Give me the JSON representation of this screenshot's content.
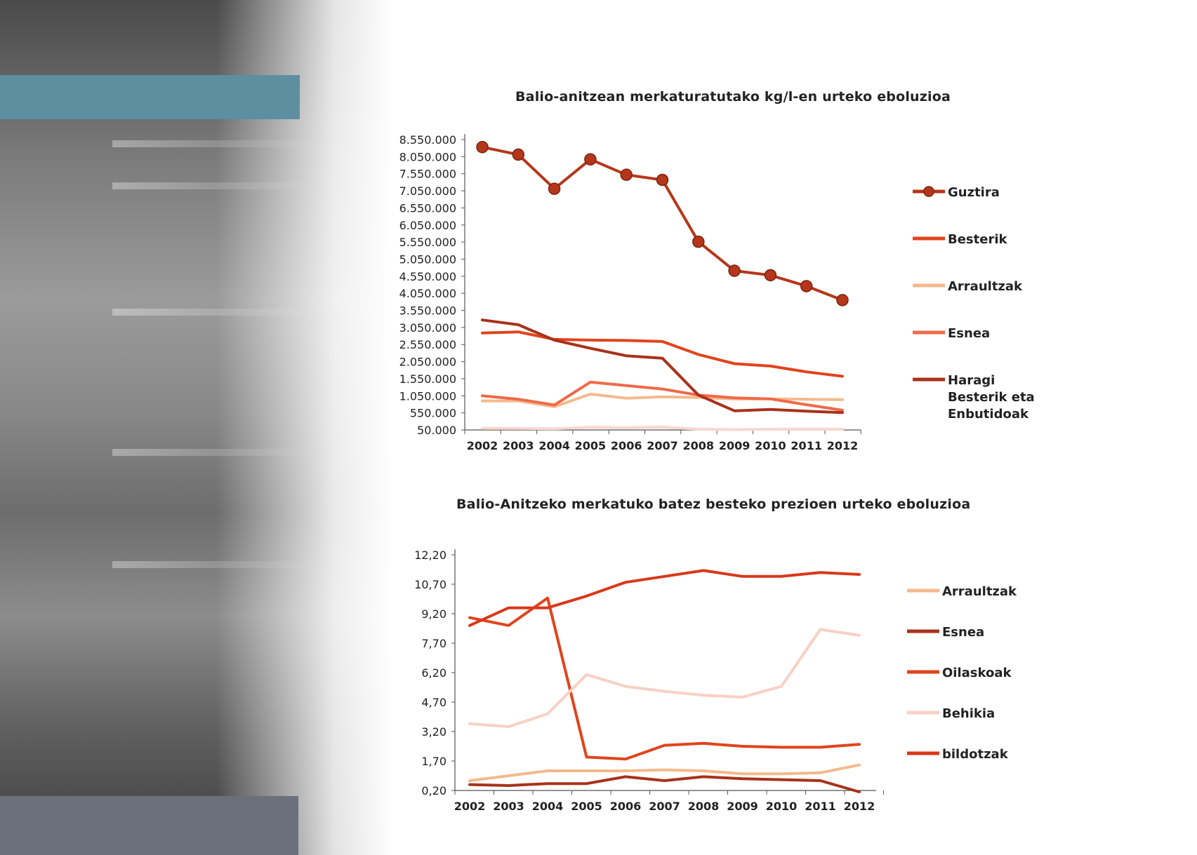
{
  "chart_data": [
    {
      "type": "line",
      "title": "Balio-anitzean merkaturatutako kg/l-en urteko eboluzioa",
      "x": [
        "2002",
        "2003",
        "2004",
        "2005",
        "2006",
        "2007",
        "2008",
        "2009",
        "2010",
        "2011",
        "2012"
      ],
      "y_ticks": [
        "8.550.000",
        "8.050.000",
        "7.550.000",
        "7.050.000",
        "6.550.000",
        "6.050.000",
        "5.550.000",
        "5.050.000",
        "4.550.000",
        "4.050.000",
        "3.550.000",
        "3.050.000",
        "2.550.000",
        "2.050.000",
        "1.550.000",
        "1.050.000",
        "550.000",
        "50.000"
      ],
      "ylim": [
        50000,
        8550000
      ],
      "series": [
        {
          "name": "Guztira",
          "color": "#b5371b",
          "values": [
            8330000,
            8110000,
            7110000,
            7970000,
            7520000,
            7370000,
            5560000,
            4710000,
            4580000,
            4260000,
            3850000
          ]
        },
        {
          "name": "Besterik",
          "color": "#e0441c",
          "values": [
            2890000,
            2920000,
            2700000,
            2680000,
            2670000,
            2640000,
            2260000,
            1990000,
            1920000,
            1750000,
            1620000
          ]
        },
        {
          "name": "Arraultzak",
          "color": "#f4b98c",
          "values": [
            900000,
            900000,
            730000,
            1100000,
            980000,
            1020000,
            1000000,
            960000,
            960000,
            950000,
            940000
          ]
        },
        {
          "name": "Esnea",
          "color": "#ee6a4a",
          "values": [
            1050000,
            950000,
            780000,
            1450000,
            1350000,
            1250000,
            1070000,
            990000,
            960000,
            790000,
            630000
          ]
        },
        {
          "name": "Haragi Besterik eta Enbutidoak",
          "legend_lines": [
            "Haragi",
            "Besterik eta",
            "Enbutidoak"
          ],
          "color": "#a8321a",
          "values": [
            3270000,
            3130000,
            2680000,
            2440000,
            2220000,
            2150000,
            1070000,
            610000,
            650000,
            600000,
            560000
          ]
        },
        {
          "name": "",
          "color": "#f8d8d0",
          "legend": false,
          "values": [
            100000,
            95000,
            85000,
            130000,
            115000,
            135000,
            75000,
            60000,
            70000,
            80000,
            70000
          ]
        }
      ]
    },
    {
      "type": "line",
      "title": "Balio-Anitzeko merkatuko batez besteko prezioen urteko eboluzioa",
      "x": [
        "2002",
        "2003",
        "2004",
        "2005",
        "2006",
        "2007",
        "2008",
        "2009",
        "2010",
        "2011",
        "2012"
      ],
      "y_ticks": [
        "12,20",
        "10,70",
        "9,20",
        "7,70",
        "6,20",
        "4,70",
        "3,20",
        "1,70",
        "0,20"
      ],
      "ylim": [
        0.2,
        12.2
      ],
      "series": [
        {
          "name": "Arraultzak",
          "color": "#f4b98c",
          "values": [
            0.7,
            0.95,
            1.2,
            1.2,
            1.2,
            1.25,
            1.2,
            1.05,
            1.05,
            1.1,
            1.5
          ]
        },
        {
          "name": "Esnea",
          "color": "#a8321a",
          "values": [
            0.5,
            0.45,
            0.55,
            0.55,
            0.9,
            0.7,
            0.9,
            0.8,
            0.75,
            0.7,
            -0.5
          ]
        },
        {
          "name": "Oilaskoak",
          "color": "#e0441c",
          "values": [
            9.0,
            8.6,
            10.0,
            1.9,
            1.8,
            2.5,
            2.6,
            2.45,
            2.4,
            2.4,
            2.55
          ]
        },
        {
          "name": "Behikia",
          "color": "#f8d0c4",
          "values": [
            3.6,
            3.45,
            4.1,
            6.1,
            5.5,
            5.25,
            5.05,
            4.95,
            5.5,
            8.4,
            8.1
          ]
        },
        {
          "name": "bildotzak",
          "color": "#d9381a",
          "values": [
            8.6,
            9.5,
            9.5,
            10.1,
            10.8,
            11.1,
            11.4,
            11.1,
            11.1,
            11.3,
            11.2
          ]
        }
      ]
    }
  ]
}
